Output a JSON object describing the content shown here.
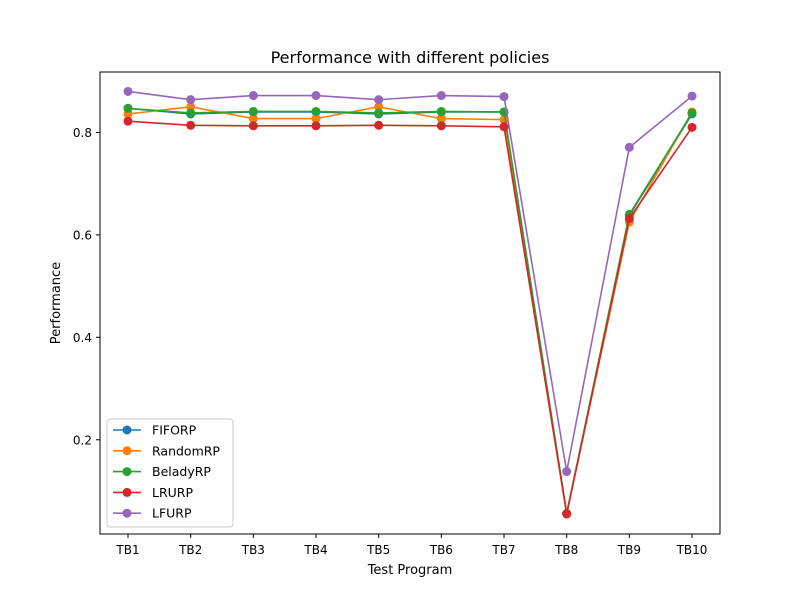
{
  "chart_data": {
    "type": "line",
    "title": "Performance with different policies",
    "xlabel": "Test Program",
    "ylabel": "Performance",
    "categories": [
      "TB1",
      "TB2",
      "TB3",
      "TB4",
      "TB5",
      "TB6",
      "TB7",
      "TB8",
      "TB9",
      "TB10"
    ],
    "ylim": [
      0.016,
      0.918
    ],
    "yticks": [
      "0.2",
      "0.4",
      "0.6",
      "0.8"
    ],
    "ytick_values": [
      0.2,
      0.4,
      0.6,
      0.8
    ],
    "grid": false,
    "legend_position": "lower-left",
    "series": [
      {
        "name": "FIFORP",
        "color": "#1f77b4",
        "values": [
          0.847,
          0.836,
          0.84,
          0.84,
          0.836,
          0.84,
          0.84,
          0.056,
          0.638,
          0.836
        ]
      },
      {
        "name": "RandomRP",
        "color": "#ff7f0e",
        "values": [
          0.836,
          0.85,
          0.827,
          0.827,
          0.85,
          0.827,
          0.825,
          0.056,
          0.625,
          0.84
        ]
      },
      {
        "name": "BeladyRP",
        "color": "#2ca02c",
        "values": [
          0.847,
          0.838,
          0.841,
          0.841,
          0.838,
          0.841,
          0.84,
          0.056,
          0.64,
          0.838
        ]
      },
      {
        "name": "LRURP",
        "color": "#d62728",
        "values": [
          0.822,
          0.814,
          0.813,
          0.813,
          0.814,
          0.813,
          0.811,
          0.055,
          0.632,
          0.81
        ]
      },
      {
        "name": "LFURP",
        "color": "#9467bd",
        "values": [
          0.88,
          0.864,
          0.872,
          0.872,
          0.864,
          0.872,
          0.87,
          0.138,
          0.771,
          0.871
        ]
      }
    ]
  }
}
